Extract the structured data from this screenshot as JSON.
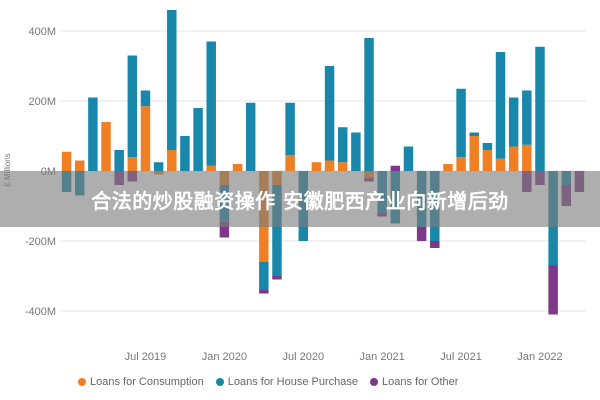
{
  "banner": {
    "text": "合法的炒股融资操作 安徽肥西产业向新增后劲"
  },
  "chart_data": {
    "type": "bar",
    "stacked": true,
    "ylabel": "£ Millions",
    "ylim": [
      -450,
      450
    ],
    "yticks": [
      -400,
      -200,
      0,
      200,
      400
    ],
    "ytick_labels": [
      "-400M",
      "-200M",
      "0M",
      "200M",
      "400M"
    ],
    "xtick_labels": [
      {
        "label": "Jul 2019",
        "index": 6
      },
      {
        "label": "Jan 2020",
        "index": 12
      },
      {
        "label": "Jul 2020",
        "index": 18
      },
      {
        "label": "Jan 2021",
        "index": 24
      },
      {
        "label": "Jul 2021",
        "index": 30
      },
      {
        "label": "Jan 2022",
        "index": 36
      }
    ],
    "grid": true,
    "legend_position": "bottom",
    "series": [
      {
        "name": "Loans for Consumption",
        "color": "#f07f24",
        "values": [
          55,
          30,
          0,
          140,
          0,
          40,
          185,
          -10,
          60,
          0,
          0,
          15,
          -40,
          20,
          0,
          -260,
          -40,
          45,
          0,
          25,
          30,
          25,
          0,
          -20,
          0,
          0,
          0,
          0,
          0,
          20,
          40,
          100,
          60,
          35,
          70,
          75,
          0,
          0,
          0,
          0
        ]
      },
      {
        "name": "Loans for House Purchase",
        "color": "#1887a9",
        "values": [
          -60,
          -70,
          210,
          0,
          60,
          290,
          45,
          25,
          400,
          100,
          180,
          355,
          -105,
          0,
          195,
          -80,
          -260,
          150,
          -200,
          0,
          270,
          100,
          110,
          380,
          -120,
          -150,
          70,
          -160,
          -200,
          0,
          195,
          10,
          20,
          305,
          140,
          155,
          355,
          -270,
          -40,
          0
        ]
      },
      {
        "name": "Loans for Other",
        "color": "#7e3789",
        "values": [
          0,
          0,
          0,
          0,
          -40,
          -30,
          0,
          0,
          0,
          0,
          0,
          0,
          -45,
          0,
          0,
          -10,
          -10,
          0,
          0,
          0,
          0,
          0,
          0,
          -10,
          -10,
          15,
          0,
          -40,
          -20,
          0,
          0,
          0,
          0,
          0,
          0,
          -60,
          -40,
          -140,
          -60,
          -60
        ]
      }
    ]
  }
}
